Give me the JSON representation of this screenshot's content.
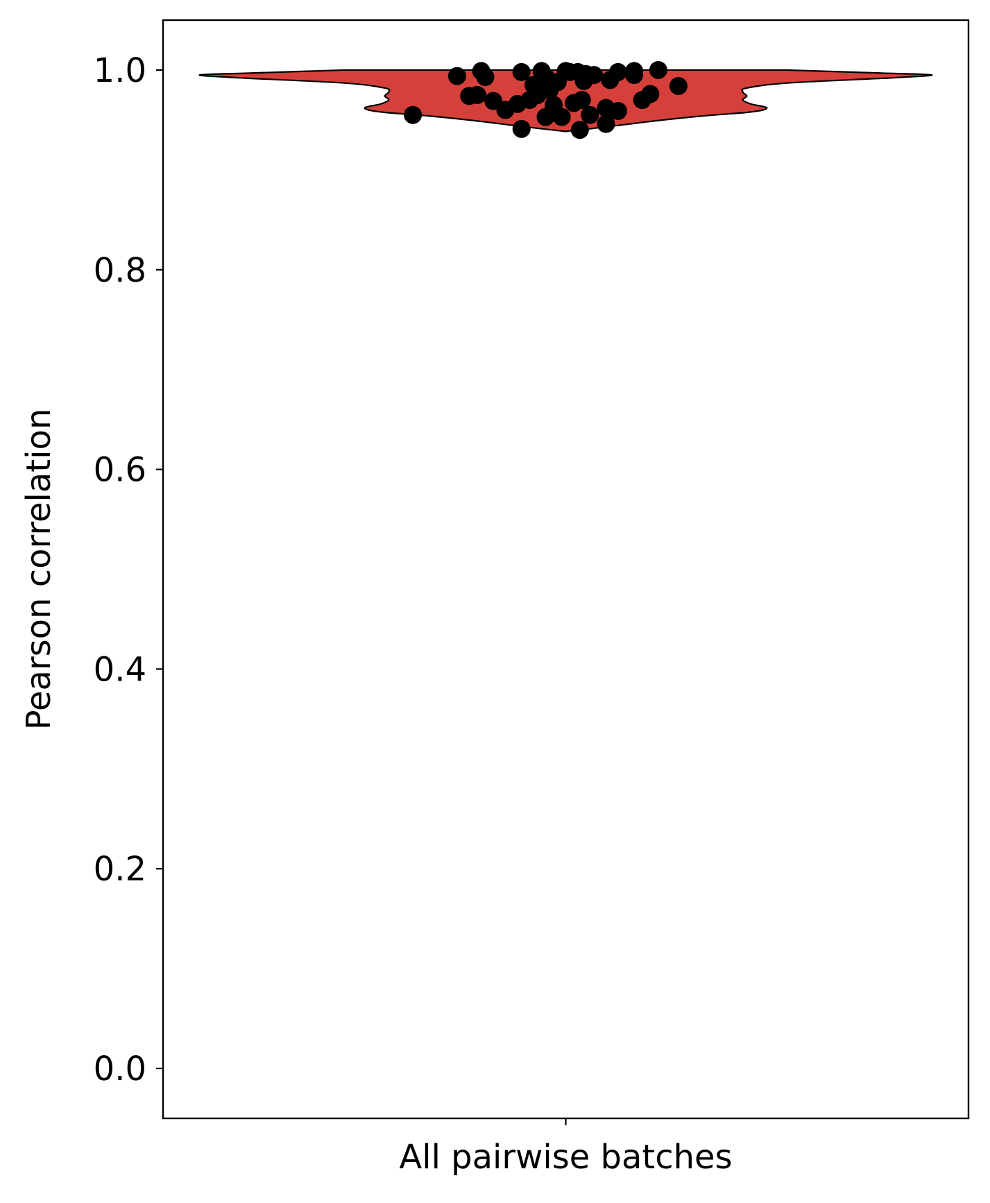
{
  "chart_data": {
    "type": "violin",
    "categories": [
      "All pairwise batches"
    ],
    "xlabel": "",
    "ylabel": "Pearson correlation",
    "ylim": [
      -0.05,
      1.05
    ],
    "yticks": [
      {
        "value": 0.0,
        "label": "0.0"
      },
      {
        "value": 0.2,
        "label": "0.2"
      },
      {
        "value": 0.4,
        "label": "0.4"
      },
      {
        "value": 0.6,
        "label": "0.6"
      },
      {
        "value": 0.8,
        "label": "0.8"
      },
      {
        "value": 1.0,
        "label": "1.0"
      }
    ],
    "grid": false,
    "violin_color": "#d5403b",
    "point_color": "#000000",
    "violin_density": [
      {
        "y": 1.0,
        "halfwidth": 0.55
      },
      {
        "y": 0.997,
        "halfwidth": 0.78
      },
      {
        "y": 0.995,
        "halfwidth": 0.91
      },
      {
        "y": 0.992,
        "halfwidth": 0.8
      },
      {
        "y": 0.987,
        "halfwidth": 0.55
      },
      {
        "y": 0.982,
        "halfwidth": 0.45
      },
      {
        "y": 0.978,
        "halfwidth": 0.44
      },
      {
        "y": 0.974,
        "halfwidth": 0.45
      },
      {
        "y": 0.97,
        "halfwidth": 0.44
      },
      {
        "y": 0.966,
        "halfwidth": 0.46
      },
      {
        "y": 0.962,
        "halfwidth": 0.5
      },
      {
        "y": 0.958,
        "halfwidth": 0.46
      },
      {
        "y": 0.954,
        "halfwidth": 0.34
      },
      {
        "y": 0.949,
        "halfwidth": 0.22
      },
      {
        "y": 0.944,
        "halfwidth": 0.12
      },
      {
        "y": 0.939,
        "halfwidth": 0.01
      }
    ],
    "points": [
      {
        "x": -0.38,
        "y": 0.955
      },
      {
        "x": -0.27,
        "y": 0.994
      },
      {
        "x": -0.21,
        "y": 0.999
      },
      {
        "x": -0.2,
        "y": 0.993
      },
      {
        "x": -0.24,
        "y": 0.974
      },
      {
        "x": -0.22,
        "y": 0.975
      },
      {
        "x": -0.18,
        "y": 0.969
      },
      {
        "x": -0.15,
        "y": 0.96
      },
      {
        "x": -0.11,
        "y": 0.998
      },
      {
        "x": -0.11,
        "y": 0.941
      },
      {
        "x": -0.12,
        "y": 0.966
      },
      {
        "x": -0.09,
        "y": 0.97
      },
      {
        "x": -0.08,
        "y": 0.985
      },
      {
        "x": -0.07,
        "y": 0.975
      },
      {
        "x": -0.06,
        "y": 0.999
      },
      {
        "x": -0.05,
        "y": 0.993
      },
      {
        "x": -0.05,
        "y": 0.953
      },
      {
        "x": -0.04,
        "y": 0.98
      },
      {
        "x": -0.03,
        "y": 0.965
      },
      {
        "x": -0.02,
        "y": 0.988
      },
      {
        "x": -0.01,
        "y": 0.953
      },
      {
        "x": 0.0,
        "y": 0.999
      },
      {
        "x": 0.01,
        "y": 0.998
      },
      {
        "x": 0.02,
        "y": 0.967
      },
      {
        "x": 0.03,
        "y": 0.998
      },
      {
        "x": 0.035,
        "y": 0.94
      },
      {
        "x": 0.04,
        "y": 0.97
      },
      {
        "x": 0.045,
        "y": 0.989
      },
      {
        "x": 0.05,
        "y": 0.996
      },
      {
        "x": 0.06,
        "y": 0.955
      },
      {
        "x": 0.07,
        "y": 0.995
      },
      {
        "x": 0.1,
        "y": 0.946
      },
      {
        "x": 0.1,
        "y": 0.962
      },
      {
        "x": 0.11,
        "y": 0.99
      },
      {
        "x": 0.13,
        "y": 0.959
      },
      {
        "x": 0.13,
        "y": 0.998
      },
      {
        "x": 0.17,
        "y": 0.995
      },
      {
        "x": 0.17,
        "y": 0.999
      },
      {
        "x": 0.19,
        "y": 0.97
      },
      {
        "x": 0.21,
        "y": 0.976
      },
      {
        "x": 0.23,
        "y": 1.0
      },
      {
        "x": 0.28,
        "y": 0.984
      }
    ]
  }
}
